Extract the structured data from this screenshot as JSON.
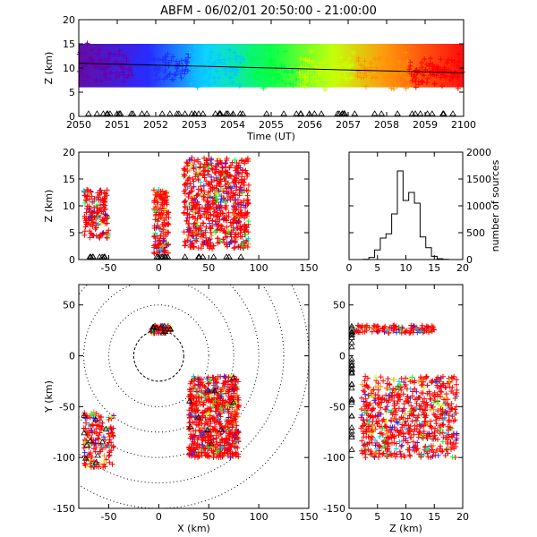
{
  "chart_data": {
    "title": "ABFM - 06/02/01 20:50:00 - 21:00:00",
    "colors": {
      "early": "#6a00a8",
      "mid": "#00ff40",
      "late": "#ff0000",
      "black": "#000000"
    },
    "panels": [
      {
        "id": "time-height",
        "type": "scatter",
        "xlabel": "Time (UT)",
        "ylabel": "Z (km)",
        "xlim": [
          2050,
          2100
        ],
        "ylim": [
          0,
          20
        ],
        "xticks": [
          "2050",
          "2051",
          "2052",
          "2053",
          "2054",
          "2055",
          "2056",
          "2057",
          "2058",
          "2059",
          "2100"
        ],
        "yticks": [
          "0",
          "5",
          "10",
          "15",
          "20"
        ],
        "trend_line": {
          "x": [
            2050,
            2100
          ],
          "y": [
            11,
            9
          ]
        }
      },
      {
        "id": "x-z",
        "type": "scatter",
        "xlabel": "",
        "ylabel": "Z (km)",
        "xlim": [
          -80,
          150
        ],
        "ylim": [
          0,
          20
        ],
        "xticks": [
          "-50",
          "0",
          "50",
          "100",
          "150"
        ],
        "yticks": [
          "0",
          "5",
          "10",
          "15",
          "20"
        ],
        "clusters": [
          {
            "x": [
              -75,
              -50
            ],
            "z": [
              4,
              13
            ]
          },
          {
            "x": [
              -5,
              10
            ],
            "z": [
              1,
              13
            ]
          },
          {
            "x": [
              25,
              90
            ],
            "z": [
              2,
              19
            ]
          }
        ]
      },
      {
        "id": "histogram",
        "type": "line",
        "xlabel": "",
        "ylabel": "number of sources",
        "xlim": [
          0,
          20
        ],
        "ylim": [
          0,
          2000
        ],
        "xticks": [
          "0",
          "5",
          "10",
          "15",
          "20"
        ],
        "yticks": [
          "0",
          "500",
          "1000",
          "1500",
          "2000"
        ],
        "x": [
          2,
          3,
          4,
          5,
          6,
          7,
          8,
          9,
          10,
          11,
          12,
          13,
          14,
          15,
          16,
          17,
          18
        ],
        "values": [
          0,
          5,
          40,
          180,
          400,
          480,
          850,
          1650,
          1100,
          1250,
          1050,
          420,
          220,
          60,
          15,
          5,
          0
        ]
      },
      {
        "id": "x-y",
        "type": "scatter",
        "xlabel": "X (km)",
        "ylabel": "Y (km)",
        "xlim": [
          -80,
          150
        ],
        "ylim": [
          -150,
          70
        ],
        "xticks": [
          "-50",
          "0",
          "50",
          "100",
          "150"
        ],
        "yticks": [
          "-150",
          "-100",
          "-50",
          "0",
          "50"
        ],
        "range_rings_km": [
          25,
          50,
          75,
          100,
          125,
          150
        ],
        "clusters": [
          {
            "x": [
              -75,
              -45
            ],
            "y": [
              -110,
              -55
            ]
          },
          {
            "x": [
              -8,
              12
            ],
            "y": [
              22,
              30
            ]
          },
          {
            "x": [
              30,
              80
            ],
            "y": [
              -100,
              -20
            ]
          }
        ]
      },
      {
        "id": "z-y",
        "type": "scatter",
        "xlabel": "Z (km)",
        "ylabel": "",
        "xlim": [
          0,
          20
        ],
        "ylim": [
          -150,
          70
        ],
        "xticks": [
          "0",
          "5",
          "10",
          "15",
          "20"
        ],
        "yticks": [
          "-150",
          "-100",
          "-50",
          "0",
          "50"
        ],
        "clusters": [
          {
            "z": [
              1,
              15
            ],
            "y": [
              22,
              30
            ]
          },
          {
            "z": [
              2,
              19
            ],
            "y": [
              -100,
              -20
            ]
          }
        ]
      }
    ]
  }
}
